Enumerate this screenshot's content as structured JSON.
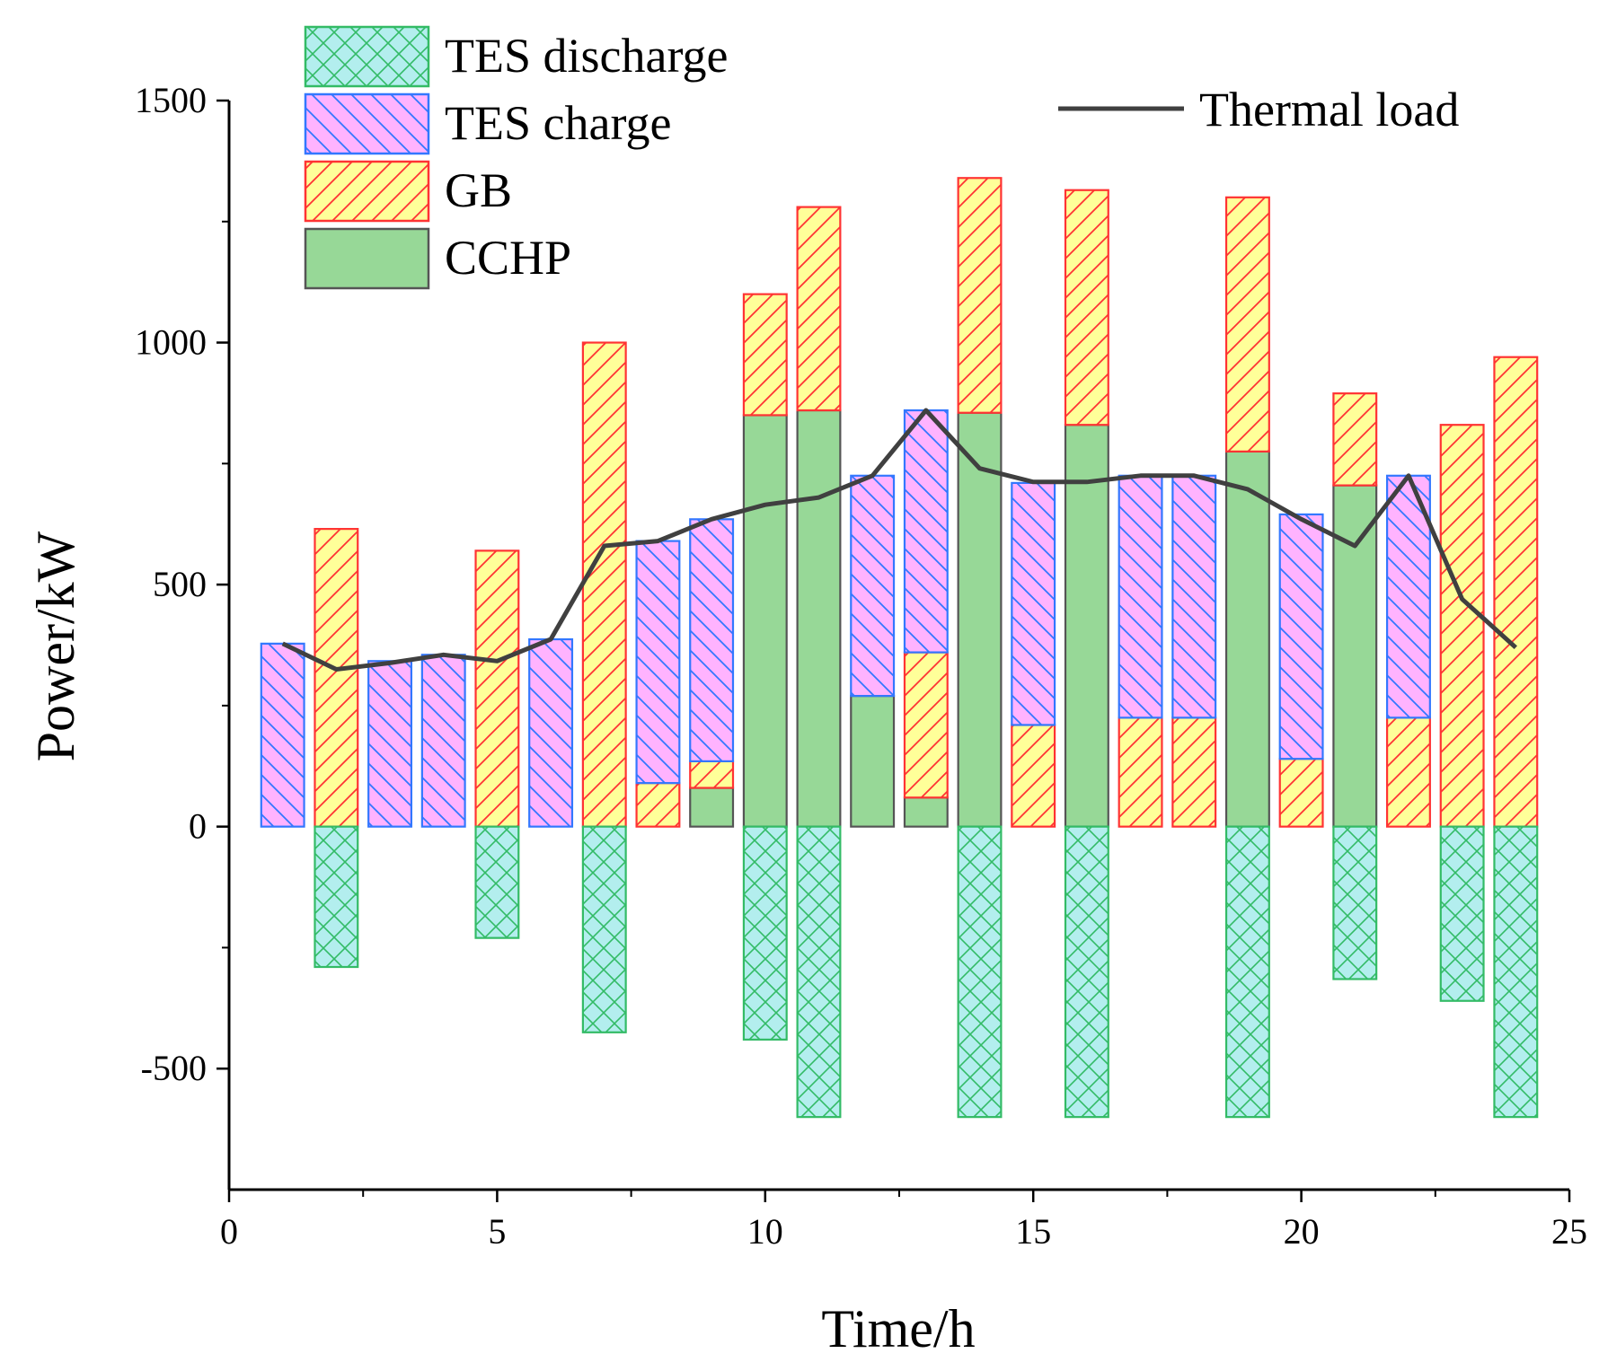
{
  "chart_data": {
    "type": "bar",
    "subtype": "stacked-bar-with-line",
    "xlabel": "Time/h",
    "ylabel": "Power/kW",
    "xlim": [
      0,
      25
    ],
    "ylim": [
      -750,
      1500
    ],
    "x_ticks": [
      0,
      5,
      10,
      15,
      20,
      25
    ],
    "y_ticks": [
      -500,
      0,
      500,
      1000,
      1500
    ],
    "x": [
      1,
      2,
      3,
      4,
      5,
      6,
      7,
      8,
      9,
      10,
      11,
      12,
      13,
      14,
      15,
      16,
      17,
      18,
      19,
      20,
      21,
      22,
      23,
      24
    ],
    "series": [
      {
        "name": "CCHP",
        "kind": "bar",
        "color": "#97d897",
        "edge": "#555555",
        "pattern": "solid",
        "values": [
          0,
          0,
          0,
          0,
          0,
          0,
          0,
          0,
          80,
          850,
          860,
          270,
          60,
          855,
          0,
          830,
          0,
          0,
          775,
          0,
          705,
          0,
          0,
          0
        ]
      },
      {
        "name": "GB",
        "kind": "bar",
        "color": "#ffff99",
        "edge": "#ff3333",
        "pattern": "diagonal-up",
        "values": [
          0,
          615,
          0,
          0,
          570,
          0,
          1000,
          90,
          55,
          250,
          420,
          0,
          300,
          485,
          210,
          485,
          225,
          225,
          525,
          140,
          190,
          225,
          830,
          970
        ]
      },
      {
        "name": "TES charge",
        "kind": "bar",
        "color": "#ffb3ff",
        "edge": "#3377ff",
        "pattern": "diagonal-down",
        "values": [
          378,
          0,
          342,
          355,
          0,
          387,
          0,
          500,
          500,
          0,
          0,
          455,
          500,
          0,
          500,
          0,
          500,
          500,
          0,
          505,
          0,
          500,
          0,
          0
        ]
      },
      {
        "name": "TES discharge",
        "kind": "bar",
        "color": "#b3eeee",
        "edge": "#33bb66",
        "pattern": "crosshatch",
        "values": [
          0,
          -290,
          0,
          0,
          -230,
          0,
          -425,
          0,
          0,
          -440,
          -600,
          0,
          0,
          -600,
          0,
          -600,
          0,
          0,
          -600,
          0,
          -315,
          0,
          -360,
          -600
        ]
      },
      {
        "name": "Thermal load",
        "kind": "line",
        "color": "#404040",
        "values": [
          378,
          325,
          338,
          355,
          342,
          387,
          580,
          590,
          635,
          665,
          680,
          725,
          860,
          740,
          712,
          712,
          725,
          725,
          697,
          635,
          580,
          725,
          470,
          370
        ]
      }
    ],
    "legend": {
      "bars": [
        "TES discharge",
        "TES charge",
        "GB",
        "CCHP"
      ],
      "line": "Thermal load",
      "placement": "top"
    }
  }
}
